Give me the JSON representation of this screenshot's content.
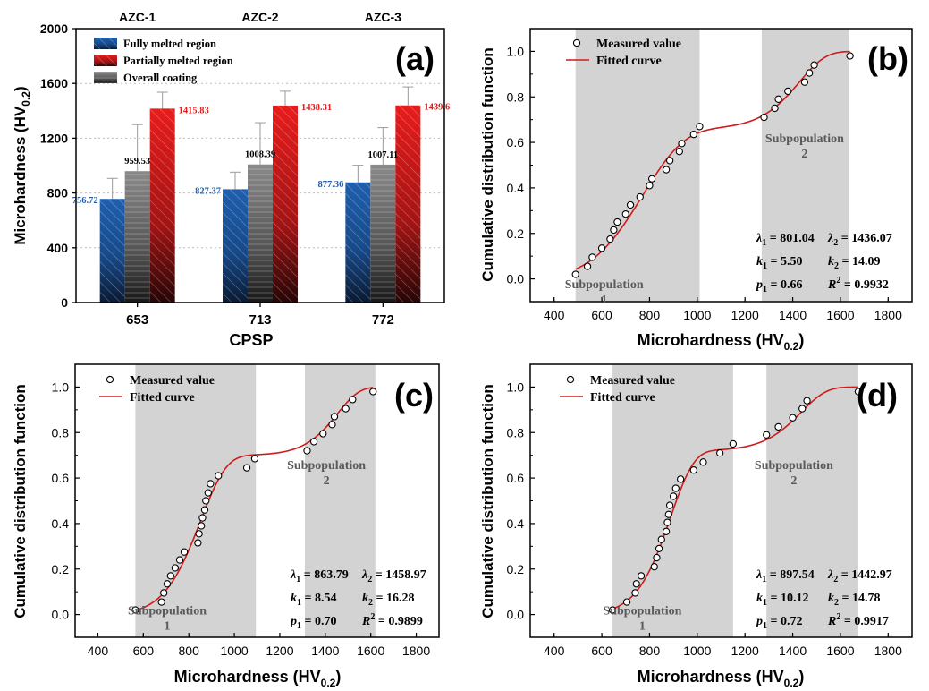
{
  "chart_data": [
    {
      "panel": "(a)",
      "type": "bar",
      "top_labels": [
        "AZC-1",
        "AZC-2",
        "AZC-3"
      ],
      "xlabel": "CPSP",
      "ylabel_main": "Microhardness (HV",
      "ylabel_sub": "0.2",
      "ylabel_close": ")",
      "categories": [
        "653",
        "713",
        "772"
      ],
      "ylim": [
        0,
        2000
      ],
      "yticks": [
        0,
        400,
        800,
        1200,
        1600,
        2000
      ],
      "series": [
        {
          "name": "Fully melted region",
          "color": "#1f5fae",
          "values": [
            756.72,
            827.37,
            877.36
          ],
          "errors": [
            150,
            125,
            125
          ],
          "labels": [
            "756.72",
            "827.37",
            "877.36"
          ]
        },
        {
          "name": "Overall coating",
          "color": "#777777",
          "values": [
            959.53,
            1008.39,
            1007.11
          ],
          "errors": [
            340,
            305,
            270
          ],
          "labels": [
            "959.53",
            "1008.39",
            "1007.11"
          ]
        },
        {
          "name": "Partially melted region",
          "color": "#e11b1b",
          "values": [
            1415.83,
            1438.31,
            1439.6
          ],
          "errors": [
            120,
            105,
            135
          ],
          "labels": [
            "1415.83",
            "1438.31",
            "1439.6"
          ]
        }
      ],
      "legend": [
        "Fully melted region",
        "Partially melted region",
        "Overall coating"
      ]
    },
    {
      "panel": "(b)",
      "type": "scatter",
      "xlabel_main": "Microhardness (HV",
      "xlabel_sub": "0.2",
      "xlabel_close": ")",
      "ylabel": "Cumulative distribution function",
      "xlim": [
        300,
        1900
      ],
      "ylim": [
        -0.1,
        1.1
      ],
      "xticks": [
        400,
        600,
        800,
        1000,
        1200,
        1400,
        1600,
        1800
      ],
      "yticks": [
        "0.0",
        "0.2",
        "0.4",
        "0.6",
        "0.8",
        "1.0"
      ],
      "legend": [
        "Measured value",
        "Fitted curve"
      ],
      "regions": [
        [
          490,
          1010
        ],
        [
          1270,
          1635
        ]
      ],
      "region_labels": [
        {
          "line1": "Subpopulation",
          "line2": "1",
          "x": 610,
          "y": -0.04
        },
        {
          "line1": "Subpopulation",
          "line2": "2",
          "x": 1450,
          "y": 0.6
        }
      ],
      "measured": [
        [
          490,
          0.02
        ],
        [
          540,
          0.055
        ],
        [
          560,
          0.095
        ],
        [
          600,
          0.135
        ],
        [
          635,
          0.175
        ],
        [
          650,
          0.215
        ],
        [
          665,
          0.25
        ],
        [
          700,
          0.285
        ],
        [
          720,
          0.325
        ],
        [
          760,
          0.36
        ],
        [
          800,
          0.41
        ],
        [
          810,
          0.44
        ],
        [
          870,
          0.48
        ],
        [
          885,
          0.52
        ],
        [
          925,
          0.56
        ],
        [
          935,
          0.595
        ],
        [
          985,
          0.635
        ],
        [
          1010,
          0.67
        ],
        [
          1280,
          0.71
        ],
        [
          1325,
          0.75
        ],
        [
          1340,
          0.79
        ],
        [
          1380,
          0.825
        ],
        [
          1450,
          0.865
        ],
        [
          1470,
          0.905
        ],
        [
          1490,
          0.94
        ],
        [
          1640,
          0.98
        ]
      ],
      "fit": {
        "w": 0.66,
        "l1": 801.04,
        "k1": 5.5,
        "l2": 1436.07,
        "k2": 14.09,
        "xmin": 490,
        "xmax": 1640
      },
      "params": [
        {
          "sym": "λ",
          "sub": "1",
          "val": " = 801.04"
        },
        {
          "sym": "λ",
          "sub": "2",
          "val": " = 1436.07"
        },
        {
          "sym": "k",
          "sub": "1",
          "val": " = 5.50"
        },
        {
          "sym": "k",
          "sub": "2",
          "val": " = 14.09"
        },
        {
          "sym": "p",
          "sub": "1",
          "val": " = 0.66"
        },
        {
          "sym": "R",
          "sup": "2",
          "val": " = 0.9932"
        }
      ]
    },
    {
      "panel": "(c)",
      "type": "scatter",
      "xlabel_main": "Microhardness (HV",
      "xlabel_sub": "0.2",
      "xlabel_close": ")",
      "ylabel": "Cumulative distribution function",
      "xlim": [
        300,
        1900
      ],
      "ylim": [
        -0.1,
        1.1
      ],
      "xticks": [
        400,
        600,
        800,
        1000,
        1200,
        1400,
        1600,
        1800
      ],
      "yticks": [
        "0.0",
        "0.2",
        "0.4",
        "0.6",
        "0.8",
        "1.0"
      ],
      "legend": [
        "Measured value",
        "Fitted curve"
      ],
      "regions": [
        [
          565,
          1095
        ],
        [
          1310,
          1620
        ]
      ],
      "region_labels": [
        {
          "line1": "Subpopulation",
          "line2": "1",
          "x": 705,
          "y": 0.0
        },
        {
          "line1": "Subpopulation",
          "line2": "2",
          "x": 1405,
          "y": 0.64
        }
      ],
      "measured": [
        [
          565,
          0.02
        ],
        [
          680,
          0.055
        ],
        [
          690,
          0.095
        ],
        [
          705,
          0.135
        ],
        [
          720,
          0.17
        ],
        [
          740,
          0.205
        ],
        [
          760,
          0.24
        ],
        [
          780,
          0.275
        ],
        [
          840,
          0.315
        ],
        [
          845,
          0.355
        ],
        [
          855,
          0.39
        ],
        [
          860,
          0.425
        ],
        [
          870,
          0.46
        ],
        [
          875,
          0.5
        ],
        [
          885,
          0.535
        ],
        [
          895,
          0.575
        ],
        [
          930,
          0.61
        ],
        [
          1055,
          0.645
        ],
        [
          1090,
          0.685
        ],
        [
          1320,
          0.72
        ],
        [
          1350,
          0.76
        ],
        [
          1390,
          0.795
        ],
        [
          1430,
          0.835
        ],
        [
          1440,
          0.87
        ],
        [
          1490,
          0.905
        ],
        [
          1520,
          0.945
        ],
        [
          1610,
          0.98
        ]
      ],
      "fit": {
        "w": 0.7,
        "l1": 863.79,
        "k1": 8.54,
        "l2": 1458.97,
        "k2": 16.28,
        "xmin": 565,
        "xmax": 1610
      },
      "params": [
        {
          "sym": "λ",
          "sub": "1",
          "val": " = 863.79"
        },
        {
          "sym": "λ",
          "sub": "2",
          "val": " = 1458.97"
        },
        {
          "sym": "k",
          "sub": "1",
          "val": " = 8.54"
        },
        {
          "sym": "k",
          "sub": "2",
          "val": " = 16.28"
        },
        {
          "sym": "p",
          "sub": "1",
          "val": " = 0.70"
        },
        {
          "sym": "R",
          "sup": "2",
          "val": " = 0.9899"
        }
      ]
    },
    {
      "panel": "(d)",
      "type": "scatter",
      "xlabel_main": "Microhardness (HV",
      "xlabel_sub": "0.2",
      "xlabel_close": ")",
      "ylabel": "Cumulative distribution function",
      "xlim": [
        300,
        1900
      ],
      "ylim": [
        -0.1,
        1.1
      ],
      "xticks": [
        400,
        600,
        800,
        1000,
        1200,
        1400,
        1600,
        1800
      ],
      "yticks": [
        "0.0",
        "0.2",
        "0.4",
        "0.6",
        "0.8",
        "1.0"
      ],
      "legend": [
        "Measured value",
        "Fitted curve"
      ],
      "regions": [
        [
          645,
          1150
        ],
        [
          1290,
          1675
        ]
      ],
      "region_labels": [
        {
          "line1": "Subpopulation",
          "line2": "1",
          "x": 770,
          "y": 0.0
        },
        {
          "line1": "Subpopulation",
          "line2": "2",
          "x": 1405,
          "y": 0.64
        }
      ],
      "measured": [
        [
          645,
          0.02
        ],
        [
          705,
          0.055
        ],
        [
          740,
          0.095
        ],
        [
          745,
          0.135
        ],
        [
          765,
          0.17
        ],
        [
          820,
          0.21
        ],
        [
          830,
          0.25
        ],
        [
          840,
          0.29
        ],
        [
          850,
          0.33
        ],
        [
          870,
          0.365
        ],
        [
          875,
          0.405
        ],
        [
          880,
          0.44
        ],
        [
          885,
          0.48
        ],
        [
          900,
          0.52
        ],
        [
          910,
          0.555
        ],
        [
          930,
          0.595
        ],
        [
          985,
          0.635
        ],
        [
          1025,
          0.67
        ],
        [
          1095,
          0.71
        ],
        [
          1150,
          0.75
        ],
        [
          1290,
          0.79
        ],
        [
          1340,
          0.825
        ],
        [
          1400,
          0.865
        ],
        [
          1440,
          0.905
        ],
        [
          1460,
          0.94
        ],
        [
          1675,
          0.98
        ]
      ],
      "fit": {
        "w": 0.72,
        "l1": 897.54,
        "k1": 10.12,
        "l2": 1442.97,
        "k2": 14.78,
        "xmin": 645,
        "xmax": 1675
      },
      "params": [
        {
          "sym": "λ",
          "sub": "1",
          "val": " = 897.54"
        },
        {
          "sym": "λ",
          "sub": "2",
          "val": " = 1442.97"
        },
        {
          "sym": "k",
          "sub": "1",
          "val": " = 10.12"
        },
        {
          "sym": "k",
          "sub": "2",
          "val": " = 14.78"
        },
        {
          "sym": "p",
          "sub": "1",
          "val": " = 0.72"
        },
        {
          "sym": "R",
          "sup": "2",
          "val": " = 0.9917"
        }
      ]
    }
  ]
}
